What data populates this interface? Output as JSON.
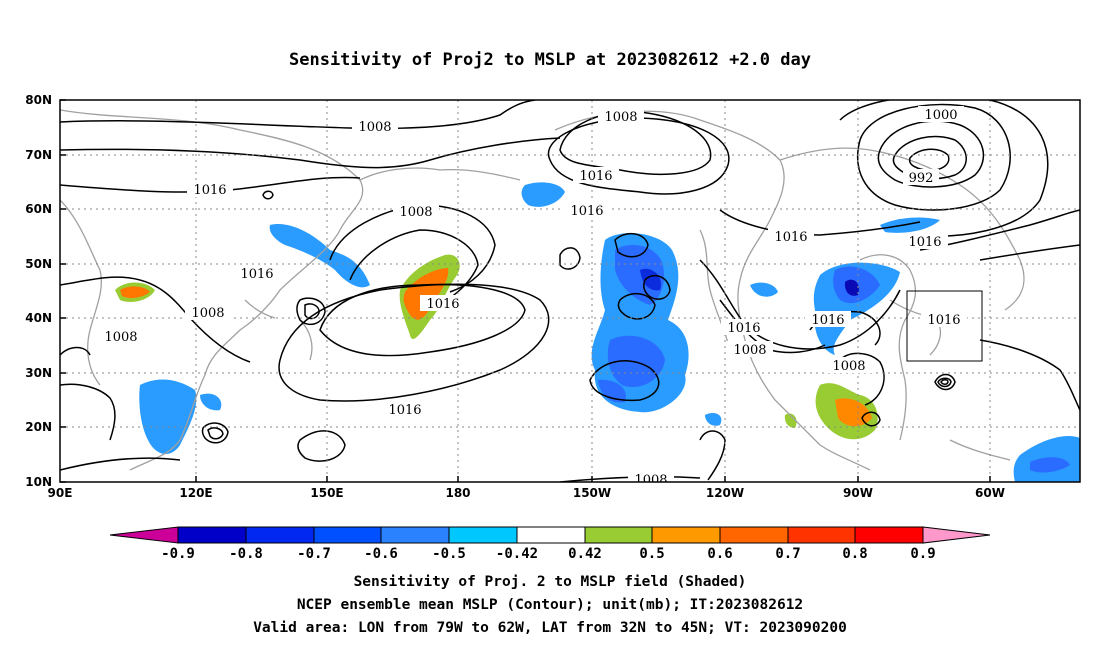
{
  "title": "Sensitivity of Proj2 to MSLP at 2023082612 +2.0 day",
  "map": {
    "lat_labels": [
      "80N",
      "70N",
      "60N",
      "50N",
      "40N",
      "30N",
      "20N",
      "10N"
    ],
    "lon_labels": [
      "90E",
      "120E",
      "150E",
      "180",
      "150W",
      "120W",
      "90W",
      "60W"
    ],
    "contour_labels": [
      "1008",
      "1016",
      "1008",
      "1000",
      "992",
      "1016",
      "1016",
      "1016",
      "1008",
      "1016",
      "1016",
      "1008",
      "1016",
      "1016",
      "1016",
      "1008",
      "1008",
      "1016",
      "1008",
      "1016",
      "1008"
    ],
    "colors": {
      "contour": "#000000",
      "coastline": "#a0a0a0",
      "grid": "#888888",
      "box": "#000000"
    }
  },
  "colorbar": {
    "colors": [
      "#cc0099",
      "#0000c8",
      "#0028f0",
      "#0050ff",
      "#2a82ff",
      "#00c8ff",
      "#ffffff",
      "#99cc33",
      "#ff9900",
      "#ff6600",
      "#ff3300",
      "#ff0000",
      "#ff99cc"
    ],
    "labels": [
      "-0.9",
      "-0.8",
      "-0.7",
      "-0.6",
      "-0.5",
      "-0.42",
      "0.42",
      "0.5",
      "0.6",
      "0.7",
      "0.8",
      "0.9"
    ]
  },
  "captions": [
    "Sensitivity of Proj. 2 to MSLP field (Shaded)",
    "NCEP ensemble mean MSLP (Contour); unit(mb); IT:2023082612",
    "Valid area: LON from 79W to 62W, LAT from 32N to 45N; VT: 2023090200"
  ]
}
